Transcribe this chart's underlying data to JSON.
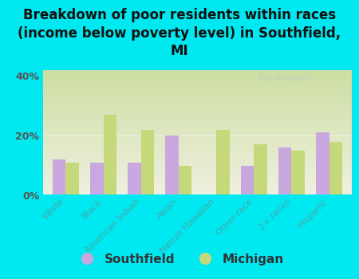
{
  "title": "Breakdown of poor residents within races\n(income below poverty level) in Southfield,\nMI",
  "categories": [
    "White",
    "Black",
    "American Indian",
    "Asian",
    "Native Hawaiian",
    "Other race",
    "2+ races",
    "Hispanic"
  ],
  "southfield": [
    12,
    11,
    11,
    20,
    0,
    10,
    16,
    21
  ],
  "michigan": [
    11,
    27,
    22,
    10,
    22,
    17,
    15,
    18
  ],
  "southfield_color": "#c9a8e0",
  "michigan_color": "#c5d87a",
  "background_outer": "#00e8f0",
  "background_plot_top": "#ccdda0",
  "background_plot_bottom": "#f0f0e0",
  "ylim": [
    0,
    42
  ],
  "yticks": [
    0,
    20,
    40
  ],
  "ytick_labels": [
    "0%",
    "20%",
    "40%"
  ],
  "watermark": "City-Data.com",
  "legend_southfield": "Southfield",
  "legend_michigan": "Michigan",
  "bar_width": 0.35,
  "title_fontsize": 12,
  "xtick_fontsize": 8,
  "ytick_fontsize": 9,
  "legend_fontsize": 11
}
